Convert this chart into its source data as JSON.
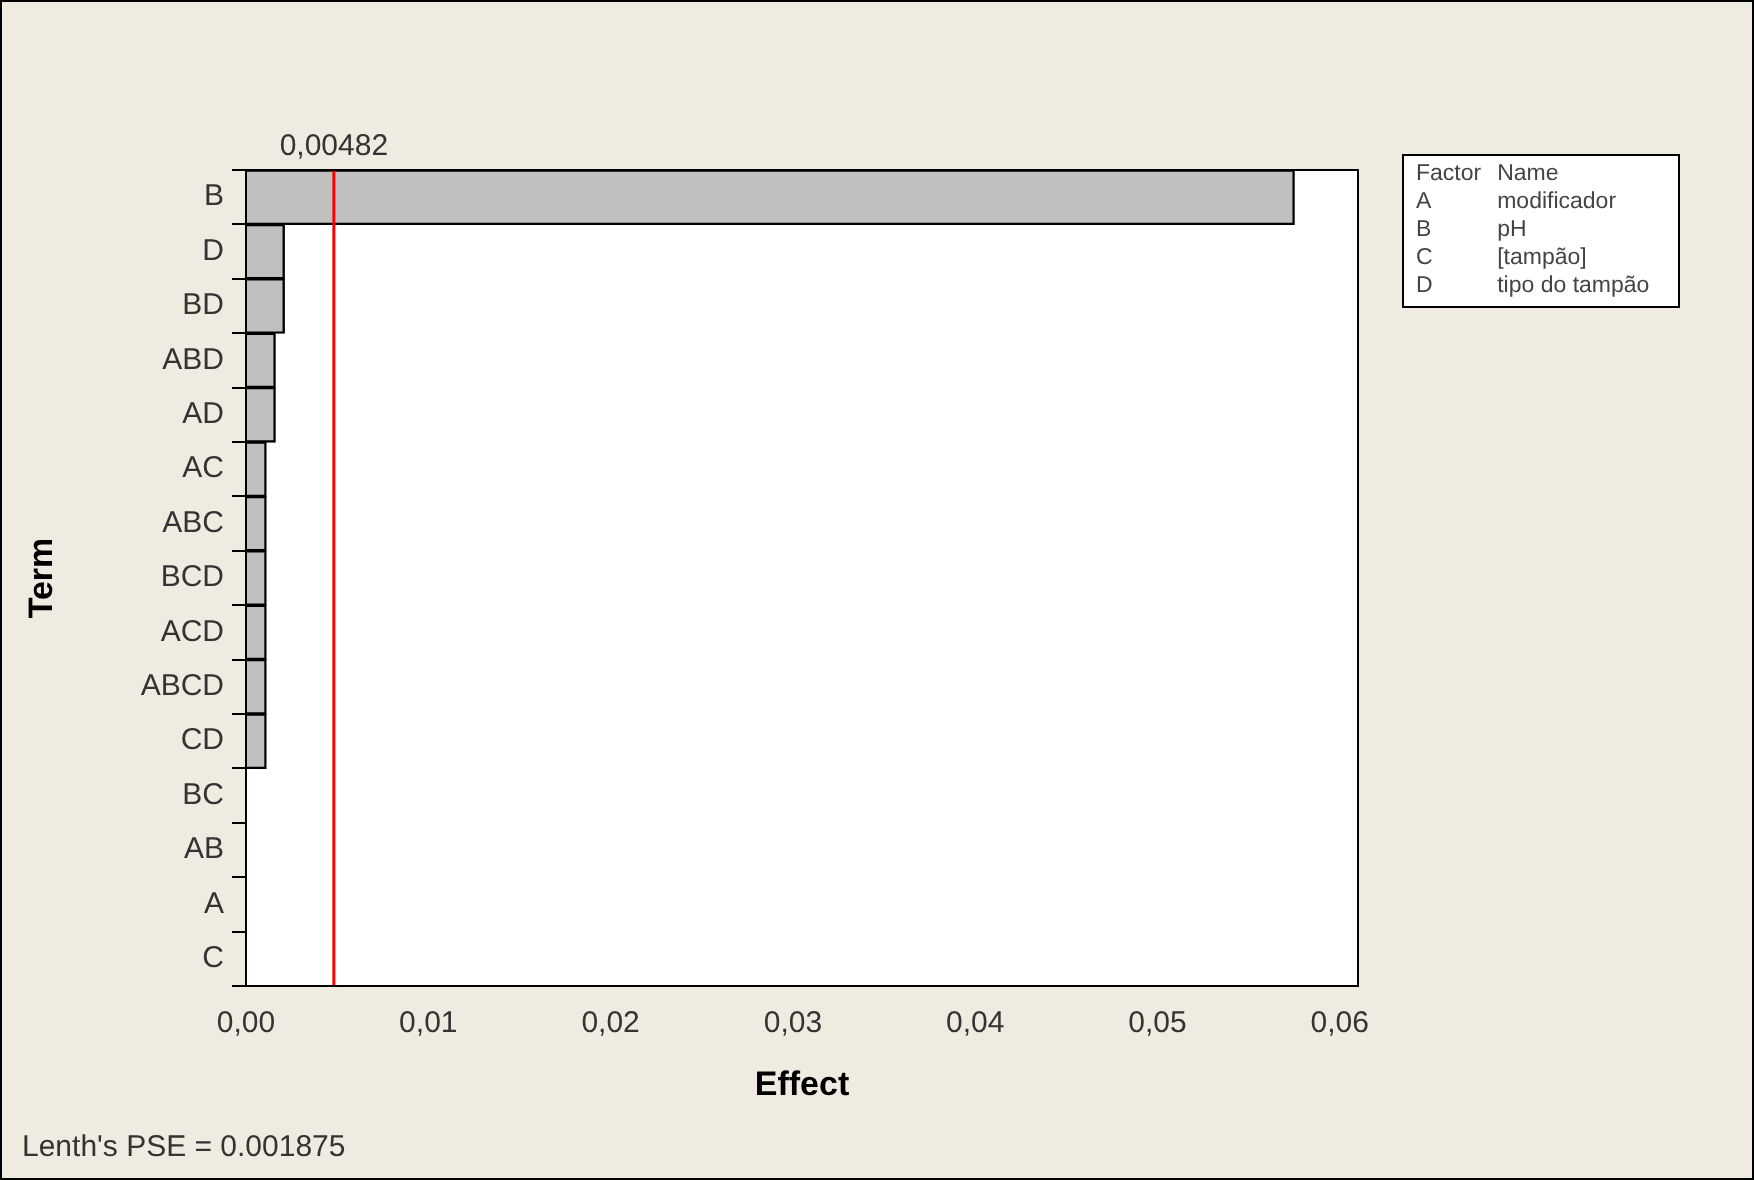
{
  "chart_data": {
    "type": "bar",
    "orientation": "horizontal",
    "xlabel": "Effect",
    "ylabel": "Term",
    "categories": [
      "B",
      "D",
      "BD",
      "ABD",
      "AD",
      "AC",
      "ABC",
      "BCD",
      "ACD",
      "ABCD",
      "CD",
      "BC",
      "AB",
      "A",
      "C"
    ],
    "values": [
      0.0575,
      0.0021,
      0.0021,
      0.0016,
      0.0016,
      0.0011,
      0.0011,
      0.0011,
      0.0011,
      0.0011,
      0.0011,
      null,
      null,
      null,
      null
    ],
    "color": "#c0c0c0",
    "xlim": [
      0,
      0.061
    ],
    "xticks": [
      {
        "value": 0,
        "label": "0,00"
      },
      {
        "value": 0.01,
        "label": "0,01"
      },
      {
        "value": 0.02,
        "label": "0,02"
      },
      {
        "value": 0.03,
        "label": "0,03"
      },
      {
        "value": 0.04,
        "label": "0,04"
      },
      {
        "value": 0.05,
        "label": "0,05"
      },
      {
        "value": 0.06,
        "label": "0,06"
      }
    ],
    "ref_lines": [
      {
        "axis": "x",
        "value": 0.00482,
        "label": "0,00482",
        "color": "#ff0000"
      }
    ],
    "annotations": [
      "Lenth's PSE = 0.001875",
      "Factor\tName",
      "A\tmodificador",
      "B\tpH",
      "C\t[tampão]",
      "D\ttipo do tampão"
    ],
    "grid": false,
    "legend": false
  }
}
